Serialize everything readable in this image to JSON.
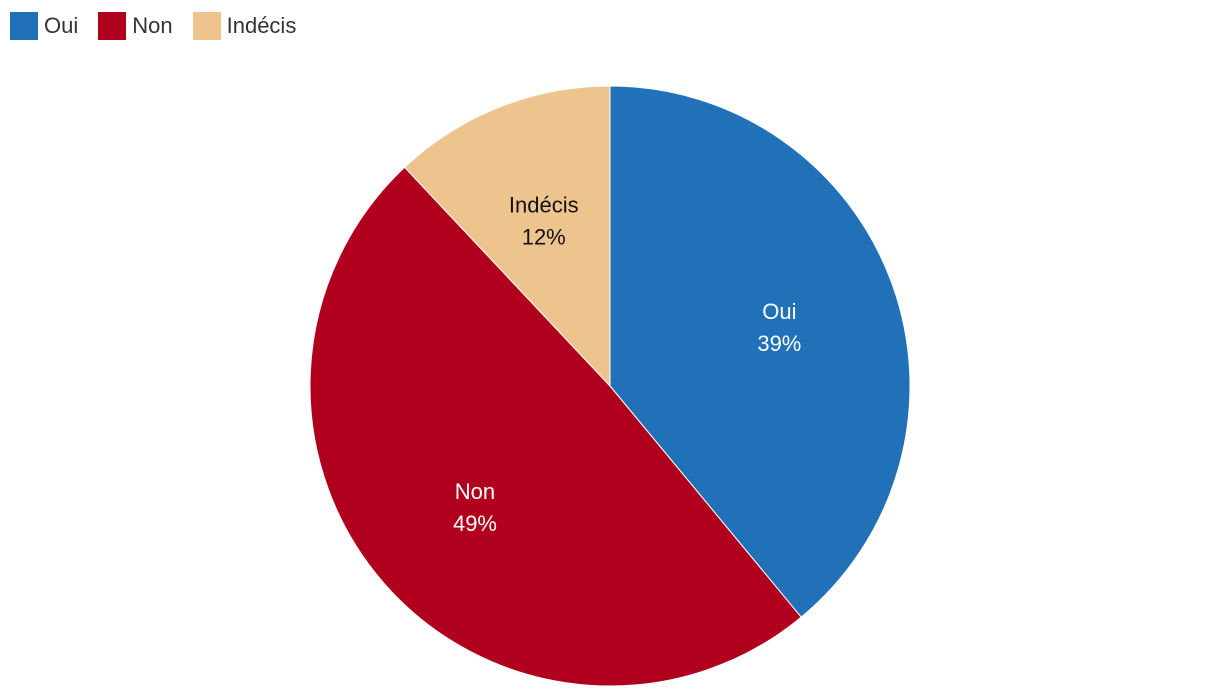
{
  "chart_data": {
    "type": "pie",
    "categories": [
      "Oui",
      "Non",
      "Indécis"
    ],
    "values": [
      39,
      49,
      12
    ],
    "value_labels": [
      "39%",
      "49%",
      "12%"
    ],
    "colors": [
      "#2171b8",
      "#b0001e",
      "#eec48e"
    ],
    "label_colors": [
      "#ffffff",
      "#ffffff",
      "#111111"
    ],
    "legend_position": "top-left",
    "start_angle": "top",
    "direction": "clockwise"
  }
}
